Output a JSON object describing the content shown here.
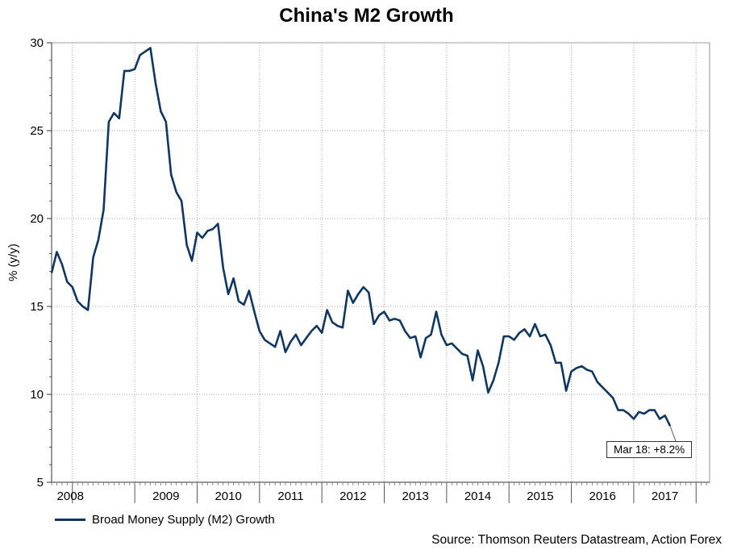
{
  "chart_data": {
    "type": "line",
    "title": "China's M2 Growth",
    "ylabel": "% (y/y)",
    "xlabel": "",
    "ylim": [
      5,
      30
    ],
    "yticks": [
      5,
      10,
      15,
      20,
      25,
      30
    ],
    "x_year_labels": [
      "2008",
      "2009",
      "2010",
      "2011",
      "2012",
      "2013",
      "2014",
      "2015",
      "2016",
      "2017"
    ],
    "grid": true,
    "legend_placement": "bottom-left",
    "series": [
      {
        "name": "Broad Money Supply (M2) Growth",
        "color": "#0f3761",
        "start": "2007-09",
        "values": [
          16.9,
          18.1,
          17.4,
          16.4,
          16.1,
          15.3,
          15.0,
          14.8,
          17.8,
          18.8,
          20.5,
          25.5,
          26.0,
          25.7,
          28.4,
          28.4,
          28.5,
          29.3,
          29.5,
          29.7,
          27.7,
          26.1,
          25.5,
          22.5,
          21.5,
          21.0,
          18.5,
          17.6,
          19.2,
          18.9,
          19.3,
          19.4,
          19.7,
          17.2,
          15.7,
          16.6,
          15.3,
          15.1,
          15.9,
          14.7,
          13.6,
          13.1,
          12.9,
          12.7,
          13.6,
          12.4,
          13.0,
          13.4,
          12.8,
          13.2,
          13.6,
          13.9,
          13.5,
          14.8,
          14.1,
          13.9,
          13.8,
          15.9,
          15.2,
          15.7,
          16.1,
          15.8,
          14.0,
          14.5,
          14.7,
          14.2,
          14.3,
          14.2,
          13.6,
          13.2,
          13.3,
          12.1,
          13.2,
          13.4,
          14.7,
          13.4,
          12.8,
          12.9,
          12.6,
          12.3,
          12.2,
          10.8,
          12.5,
          11.6,
          10.1,
          10.8,
          11.8,
          13.3,
          13.3,
          13.1,
          13.5,
          13.7,
          13.3,
          14.0,
          13.3,
          13.4,
          12.8,
          11.8,
          11.8,
          10.2,
          11.3,
          11.5,
          11.6,
          11.4,
          11.3,
          10.7,
          10.4,
          10.1,
          9.8,
          9.1,
          9.1,
          8.9,
          8.6,
          9.0,
          8.9,
          9.1,
          9.1,
          8.6,
          8.8,
          8.2
        ]
      }
    ],
    "annotation": {
      "text": "Mar 18: +8.2%",
      "date": "2018-03",
      "value": 8.2
    },
    "source": "Source: Thomson Reuters Datastream, Action Forex"
  }
}
